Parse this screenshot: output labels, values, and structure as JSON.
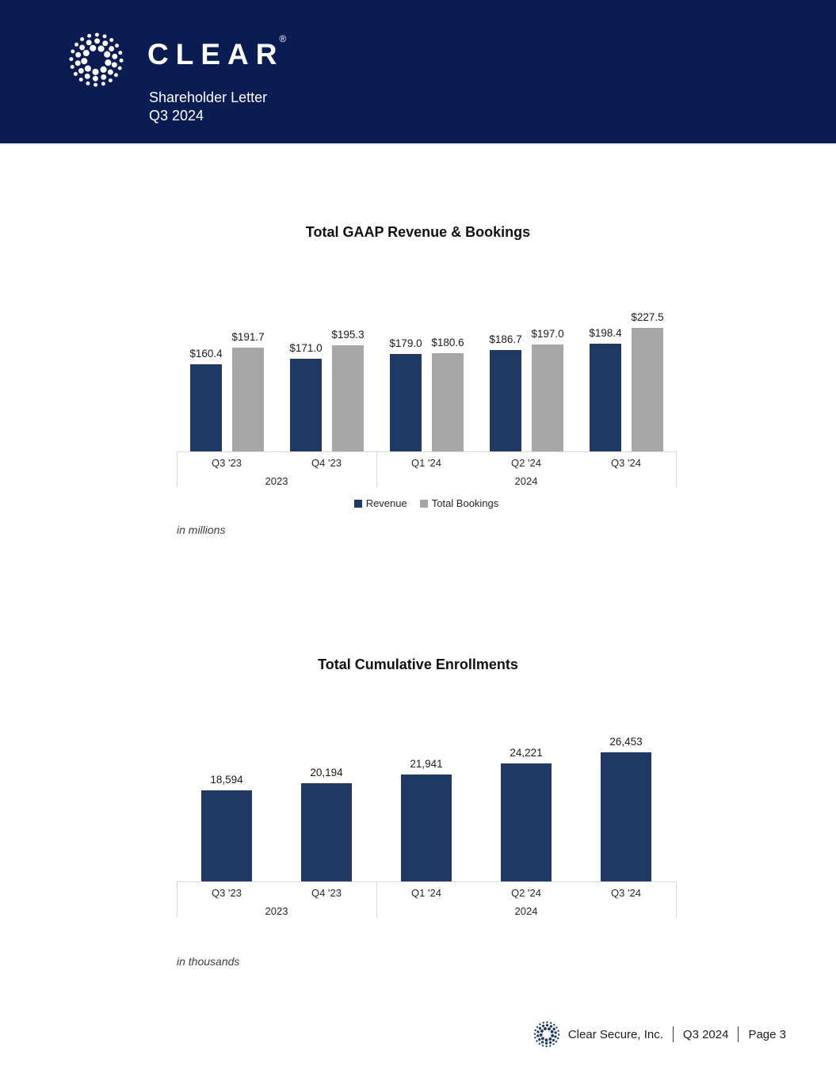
{
  "header": {
    "brand": "CLEAR",
    "registered_mark": "®",
    "subtitle_line1": "Shareholder Letter",
    "subtitle_line2": "Q3 2024",
    "bg_color": "#0A1C52"
  },
  "colors": {
    "navy_bar": "#1F3864",
    "gray_bar": "#A6A6A6",
    "axis_line": "#D9D9D9",
    "header_bg": "#0A1C52"
  },
  "chart_data": [
    {
      "type": "bar",
      "title": "Total GAAP Revenue & Bookings",
      "unit_note": "in millions",
      "categories": [
        "Q3 '23",
        "Q4 '23",
        "Q1 '24",
        "Q2 '24",
        "Q3 '24"
      ],
      "groups": [
        {
          "label": "2023",
          "span": 2
        },
        {
          "label": "2024",
          "span": 3
        }
      ],
      "series": [
        {
          "name": "Revenue",
          "color": "#1F3864",
          "values": [
            160.4,
            171.0,
            179.0,
            186.7,
            198.4
          ],
          "labels": [
            "$160.4",
            "$171.0",
            "$179.0",
            "$186.7",
            "$198.4"
          ]
        },
        {
          "name": "Total Bookings",
          "color": "#A6A6A6",
          "values": [
            191.7,
            195.3,
            180.6,
            197.0,
            227.5
          ],
          "labels": [
            "$191.7",
            "$195.3",
            "$180.6",
            "$197.0",
            "$227.5"
          ]
        }
      ],
      "legend_position": "bottom-center",
      "ylim": [
        0,
        235
      ],
      "grid": false
    },
    {
      "type": "bar",
      "title": "Total Cumulative Enrollments",
      "unit_note": "in thousands",
      "categories": [
        "Q3 '23",
        "Q4 '23",
        "Q1 '24",
        "Q2 '24",
        "Q3 '24"
      ],
      "groups": [
        {
          "label": "2023",
          "span": 2
        },
        {
          "label": "2024",
          "span": 3
        }
      ],
      "series": [
        {
          "name": "Enrollments",
          "color": "#1F3864",
          "values": [
            18594,
            20194,
            21941,
            24221,
            26453
          ],
          "labels": [
            "18,594",
            "20,194",
            "21,941",
            "24,221",
            "26,453"
          ]
        }
      ],
      "legend_position": "none",
      "ylim": [
        0,
        27500
      ],
      "grid": false
    }
  ],
  "footer": {
    "company": "Clear Secure, Inc.",
    "period": "Q3 2024",
    "page": "Page 3"
  }
}
